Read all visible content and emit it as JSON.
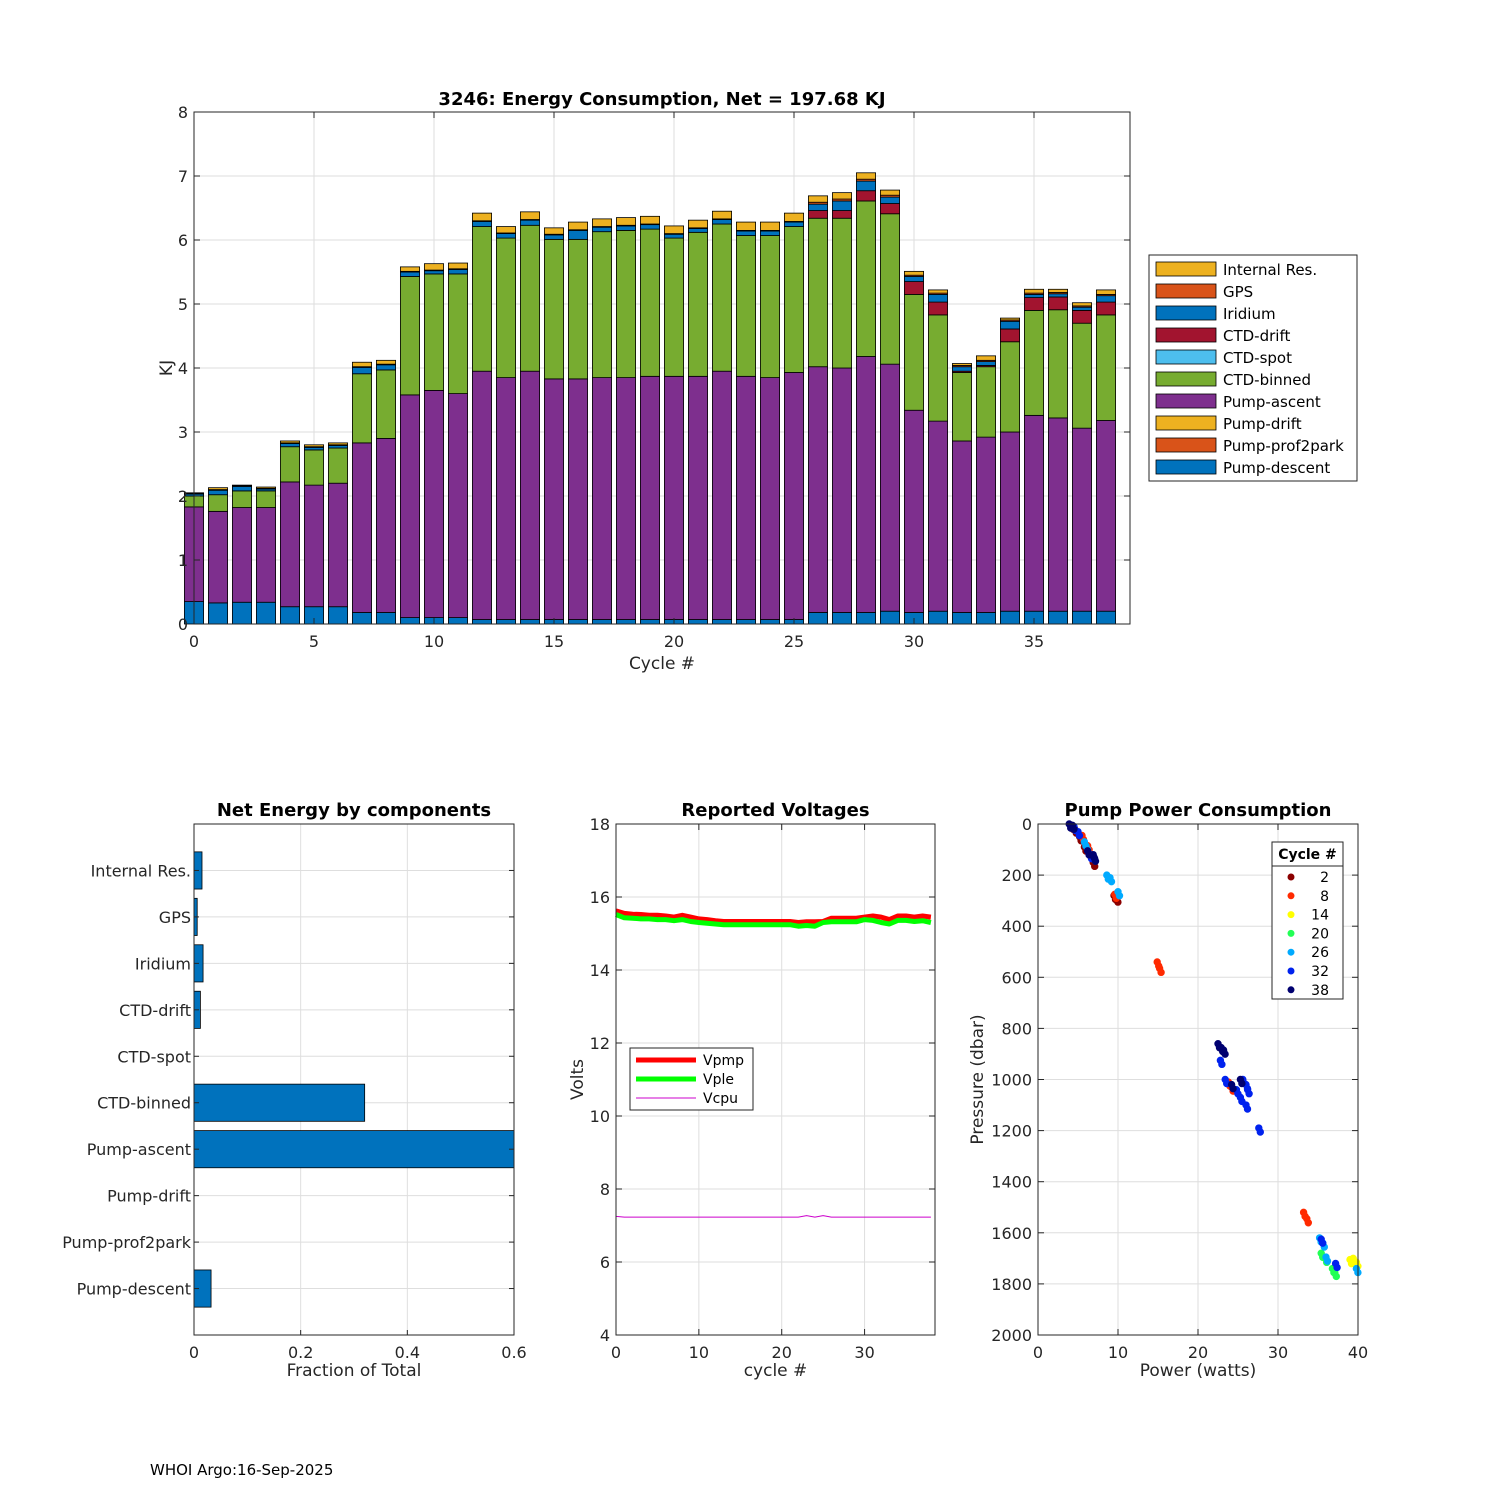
{
  "colors": {
    "pump_descent": "#0072BD",
    "pump_prof2park": "#D95319",
    "pump_drift": "#EDB120",
    "pump_ascent": "#7E2F8E",
    "ctd_binned": "#77AC30",
    "ctd_spot": "#4DBEEE",
    "ctd_drift": "#A2142F",
    "iridium": "#0072BD",
    "gps": "#D95319",
    "internal_res": "#EDB120",
    "vpmp": "#FF0000",
    "vple": "#00FF00",
    "vcpu": "#CC00CC",
    "hbar": "#0072BD"
  },
  "chart_data": [
    {
      "id": "energy",
      "type": "bar",
      "title": "3246: Energy Consumption,  Net = 197.68 KJ",
      "xlabel": "Cycle #",
      "ylabel": "KJ",
      "xlim": [
        0,
        39
      ],
      "ylim": [
        0,
        8
      ],
      "xticks": [
        0,
        5,
        10,
        15,
        20,
        25,
        30,
        35
      ],
      "yticks": [
        0,
        1,
        2,
        3,
        4,
        5,
        6,
        7,
        8
      ],
      "grid": true,
      "legend_position": "outside-right",
      "legend": [
        "Internal Res.",
        "GPS",
        "Iridium",
        "CTD-drift",
        "CTD-spot",
        "CTD-binned",
        "Pump-ascent",
        "Pump-drift",
        "Pump-prof2park",
        "Pump-descent"
      ],
      "x": [
        0,
        1,
        2,
        3,
        4,
        5,
        6,
        7,
        8,
        9,
        10,
        11,
        12,
        13,
        14,
        15,
        16,
        17,
        18,
        19,
        20,
        21,
        22,
        23,
        24,
        25,
        26,
        27,
        28,
        29,
        30,
        31,
        32,
        33,
        34,
        35,
        36,
        37,
        38
      ],
      "series": [
        {
          "name": "Pump-descent",
          "color_key": "pump_descent",
          "values": [
            0.35,
            0.33,
            0.34,
            0.34,
            0.27,
            0.27,
            0.27,
            0.18,
            0.18,
            0.1,
            0.1,
            0.1,
            0.07,
            0.07,
            0.07,
            0.07,
            0.07,
            0.07,
            0.07,
            0.07,
            0.07,
            0.07,
            0.07,
            0.07,
            0.07,
            0.07,
            0.18,
            0.18,
            0.18,
            0.2,
            0.18,
            0.2,
            0.18,
            0.18,
            0.2,
            0.2,
            0.2,
            0.2,
            0.2
          ]
        },
        {
          "name": "Pump-prof2park",
          "color_key": "pump_prof2park",
          "values": [
            0,
            0,
            0,
            0,
            0,
            0,
            0,
            0,
            0,
            0,
            0,
            0,
            0,
            0,
            0,
            0,
            0,
            0,
            0,
            0,
            0,
            0,
            0,
            0,
            0,
            0,
            0,
            0,
            0,
            0,
            0,
            0,
            0,
            0,
            0,
            0,
            0,
            0,
            0
          ]
        },
        {
          "name": "Pump-drift",
          "color_key": "pump_drift",
          "values": [
            0,
            0,
            0,
            0,
            0,
            0,
            0,
            0,
            0,
            0,
            0,
            0,
            0,
            0,
            0,
            0,
            0,
            0,
            0,
            0,
            0,
            0,
            0,
            0,
            0,
            0,
            0,
            0,
            0,
            0,
            0,
            0,
            0,
            0,
            0,
            0,
            0,
            0,
            0
          ]
        },
        {
          "name": "Pump-ascent",
          "color_key": "pump_ascent",
          "values": [
            1.48,
            1.43,
            1.48,
            1.48,
            1.95,
            1.9,
            1.93,
            2.65,
            2.72,
            3.48,
            3.55,
            3.5,
            3.88,
            3.78,
            3.88,
            3.76,
            3.76,
            3.78,
            3.78,
            3.8,
            3.8,
            3.8,
            3.88,
            3.8,
            3.78,
            3.86,
            3.84,
            3.82,
            4.0,
            3.86,
            3.16,
            2.97,
            2.68,
            2.74,
            2.8,
            3.06,
            3.02,
            2.86,
            2.98
          ]
        },
        {
          "name": "CTD-binned",
          "color_key": "ctd_binned",
          "values": [
            0.17,
            0.26,
            0.26,
            0.26,
            0.55,
            0.55,
            0.55,
            1.08,
            1.07,
            1.85,
            1.82,
            1.87,
            2.26,
            2.18,
            2.28,
            2.18,
            2.18,
            2.28,
            2.3,
            2.3,
            2.16,
            2.25,
            2.3,
            2.2,
            2.22,
            2.28,
            2.32,
            2.34,
            2.43,
            2.35,
            1.81,
            1.66,
            1.07,
            1.1,
            1.41,
            1.64,
            1.69,
            1.64,
            1.65
          ]
        },
        {
          "name": "CTD-spot",
          "color_key": "ctd_spot",
          "values": [
            0,
            0,
            0,
            0,
            0,
            0,
            0,
            0,
            0,
            0,
            0,
            0,
            0,
            0,
            0,
            0,
            0,
            0,
            0,
            0,
            0,
            0,
            0,
            0,
            0,
            0,
            0,
            0,
            0,
            0,
            0,
            0,
            0,
            0,
            0,
            0,
            0,
            0,
            0
          ]
        },
        {
          "name": "CTD-drift",
          "color_key": "ctd_drift",
          "values": [
            0,
            0,
            0,
            0,
            0,
            0,
            0,
            0,
            0,
            0,
            0,
            0,
            0,
            0,
            0,
            0,
            0,
            0,
            0,
            0,
            0,
            0,
            0,
            0,
            0,
            0,
            0.12,
            0.12,
            0.16,
            0.16,
            0.2,
            0.2,
            0.02,
            0.02,
            0.2,
            0.2,
            0.2,
            0.2,
            0.2
          ]
        },
        {
          "name": "Iridium",
          "color_key": "iridium",
          "values": [
            0.03,
            0.07,
            0.07,
            0.03,
            0.05,
            0.04,
            0.04,
            0.1,
            0.08,
            0.07,
            0.05,
            0.07,
            0.08,
            0.07,
            0.08,
            0.07,
            0.14,
            0.07,
            0.07,
            0.07,
            0.06,
            0.06,
            0.07,
            0.07,
            0.07,
            0.07,
            0.1,
            0.15,
            0.15,
            0.1,
            0.08,
            0.12,
            0.07,
            0.06,
            0.12,
            0.05,
            0.05,
            0.05,
            0.1
          ]
        },
        {
          "name": "GPS",
          "color_key": "gps",
          "values": [
            0.01,
            0.01,
            0.01,
            0.01,
            0.01,
            0.01,
            0.01,
            0.01,
            0.01,
            0.01,
            0.01,
            0.01,
            0.01,
            0.01,
            0.01,
            0.01,
            0.01,
            0.01,
            0.01,
            0.01,
            0.01,
            0.01,
            0.01,
            0.01,
            0.01,
            0.01,
            0.03,
            0.03,
            0.03,
            0.03,
            0.02,
            0.02,
            0.02,
            0.02,
            0.02,
            0.02,
            0.02,
            0.02,
            0.02
          ]
        },
        {
          "name": "Internal Res.",
          "color_key": "internal_res",
          "values": [
            0.01,
            0.03,
            0.01,
            0.02,
            0.03,
            0.03,
            0.03,
            0.07,
            0.06,
            0.07,
            0.1,
            0.09,
            0.12,
            0.1,
            0.12,
            0.1,
            0.12,
            0.12,
            0.12,
            0.12,
            0.12,
            0.12,
            0.12,
            0.13,
            0.13,
            0.13,
            0.1,
            0.1,
            0.1,
            0.08,
            0.06,
            0.05,
            0.03,
            0.07,
            0.03,
            0.06,
            0.05,
            0.05,
            0.07
          ]
        }
      ]
    },
    {
      "id": "components",
      "type": "bar",
      "orientation": "horizontal",
      "title": "Net Energy by components",
      "xlabel": "Fraction of Total",
      "xlim": [
        0,
        0.6
      ],
      "xticks": [
        0,
        0.2,
        0.4,
        0.6
      ],
      "xticklabels": [
        "0",
        "0.2",
        "0.4",
        "0.6"
      ],
      "grid": true,
      "categories": [
        "Internal Res.",
        "GPS",
        "Iridium",
        "CTD-drift",
        "CTD-spot",
        "CTD-binned",
        "Pump-ascent",
        "Pump-drift",
        "Pump-prof2park",
        "Pump-descent"
      ],
      "values": [
        0.015,
        0.006,
        0.017,
        0.012,
        0,
        0.32,
        0.62,
        0,
        0,
        0.032
      ]
    },
    {
      "id": "voltages",
      "type": "line",
      "title": "Reported Voltages",
      "xlabel": "cycle #",
      "ylabel": "Volts",
      "xlim": [
        0,
        38.5
      ],
      "ylim": [
        4,
        18
      ],
      "xticks": [
        0,
        10,
        20,
        30
      ],
      "yticks": [
        4,
        6,
        8,
        10,
        12,
        14,
        16,
        18
      ],
      "grid": true,
      "legend_position": "middle-left",
      "legend": [
        "Vpmp",
        "Vple",
        "Vcpu"
      ],
      "x": [
        0,
        1,
        2,
        3,
        4,
        5,
        6,
        7,
        8,
        9,
        10,
        11,
        12,
        13,
        14,
        15,
        16,
        17,
        18,
        19,
        20,
        21,
        22,
        23,
        24,
        25,
        26,
        27,
        28,
        29,
        30,
        31,
        32,
        33,
        34,
        35,
        36,
        37,
        38
      ],
      "series": [
        {
          "name": "Vpmp",
          "color_key": "vpmp",
          "width": 5,
          "values": [
            15.62,
            15.55,
            15.53,
            15.52,
            15.5,
            15.5,
            15.48,
            15.45,
            15.5,
            15.45,
            15.4,
            15.38,
            15.35,
            15.33,
            15.33,
            15.33,
            15.33,
            15.33,
            15.33,
            15.33,
            15.33,
            15.33,
            15.3,
            15.32,
            15.32,
            15.33,
            15.42,
            15.42,
            15.42,
            15.42,
            15.45,
            15.48,
            15.45,
            15.38,
            15.48,
            15.48,
            15.45,
            15.48,
            15.45
          ]
        },
        {
          "name": "Vple",
          "color_key": "vple",
          "width": 5,
          "values": [
            15.52,
            15.43,
            15.42,
            15.4,
            15.4,
            15.38,
            15.38,
            15.35,
            15.38,
            15.33,
            15.3,
            15.28,
            15.26,
            15.24,
            15.24,
            15.24,
            15.24,
            15.24,
            15.24,
            15.24,
            15.24,
            15.24,
            15.2,
            15.22,
            15.2,
            15.3,
            15.32,
            15.32,
            15.32,
            15.32,
            15.38,
            15.36,
            15.3,
            15.26,
            15.36,
            15.36,
            15.33,
            15.35,
            15.3
          ]
        },
        {
          "name": "Vcpu",
          "color_key": "vcpu",
          "width": 1,
          "values": [
            7.25,
            7.23,
            7.23,
            7.23,
            7.23,
            7.23,
            7.23,
            7.23,
            7.23,
            7.23,
            7.23,
            7.23,
            7.23,
            7.23,
            7.23,
            7.23,
            7.23,
            7.23,
            7.23,
            7.23,
            7.23,
            7.23,
            7.23,
            7.27,
            7.23,
            7.27,
            7.23,
            7.23,
            7.23,
            7.23,
            7.23,
            7.23,
            7.23,
            7.23,
            7.23,
            7.23,
            7.23,
            7.23,
            7.23
          ]
        }
      ]
    },
    {
      "id": "pump_power",
      "type": "scatter",
      "title": "Pump Power Consumption",
      "xlabel": "Power (watts)",
      "ylabel": "Pressure (dbar)",
      "xlim": [
        0,
        40
      ],
      "ylim": [
        2000,
        0
      ],
      "xticks": [
        0,
        10,
        20,
        30,
        40
      ],
      "yticks": [
        0,
        200,
        400,
        600,
        800,
        1000,
        1200,
        1400,
        1600,
        1800,
        2000
      ],
      "grid": true,
      "legend_title": "Cycle #",
      "legend_position": "top-right",
      "series": [
        {
          "name": "2",
          "color": "#8B0000",
          "points": [
            [
              4.2,
              5
            ],
            [
              4.6,
              20
            ],
            [
              5.2,
              50
            ],
            [
              5.8,
              90
            ],
            [
              6.4,
              110
            ],
            [
              6.9,
              150
            ],
            [
              9.5,
              280
            ],
            [
              9.8,
              290
            ]
          ]
        },
        {
          "name": "8",
          "color": "#FF2A00",
          "points": [
            [
              5.5,
              45
            ],
            [
              6.2,
              85
            ],
            [
              9.6,
              275
            ],
            [
              14.9,
              540
            ],
            [
              15.2,
              565
            ],
            [
              23.8,
              1010
            ],
            [
              24.2,
              1030
            ],
            [
              33.2,
              1520
            ],
            [
              33.6,
              1545
            ]
          ]
        },
        {
          "name": "14",
          "color": "#FFFF00",
          "points": [
            [
              39.0,
              1705
            ],
            [
              39.4,
              1700
            ],
            [
              39.8,
              1715
            ]
          ]
        },
        {
          "name": "20",
          "color": "#22FF55",
          "points": [
            [
              35.4,
              1680
            ],
            [
              35.9,
              1700
            ],
            [
              36.8,
              1740
            ],
            [
              37.1,
              1755
            ]
          ]
        },
        {
          "name": "26",
          "color": "#00AAFF",
          "points": [
            [
              5.8,
              70
            ],
            [
              6.2,
              100
            ],
            [
              8.6,
              200
            ],
            [
              9.0,
              210
            ],
            [
              10.0,
              265
            ],
            [
              35.2,
              1620
            ],
            [
              35.6,
              1640
            ],
            [
              36.0,
              1695
            ],
            [
              39.8,
              1740
            ]
          ]
        },
        {
          "name": "32",
          "color": "#0022EE",
          "points": [
            [
              4.5,
              10
            ],
            [
              5.0,
              30
            ],
            [
              6.5,
              120
            ],
            [
              22.8,
              925
            ],
            [
              23.4,
              1000
            ],
            [
              24.8,
              1040
            ],
            [
              25.3,
              1070
            ],
            [
              25.6,
              1000
            ],
            [
              26.0,
              1020
            ],
            [
              26.2,
              1040
            ],
            [
              26.0,
              1100
            ],
            [
              27.6,
              1190
            ],
            [
              35.4,
              1625
            ],
            [
              37.2,
              1720
            ]
          ]
        },
        {
          "name": "38",
          "color": "#000070",
          "points": [
            [
              3.9,
              0
            ],
            [
              4.3,
              5
            ],
            [
              6.2,
              105
            ],
            [
              6.9,
              120
            ],
            [
              7.0,
              130
            ],
            [
              22.5,
              860
            ],
            [
              22.9,
              875
            ],
            [
              23.2,
              885
            ],
            [
              24.2,
              1020
            ],
            [
              25.3,
              1000
            ]
          ]
        }
      ]
    }
  ],
  "footer": "WHOI Argo:16-Sep-2025"
}
